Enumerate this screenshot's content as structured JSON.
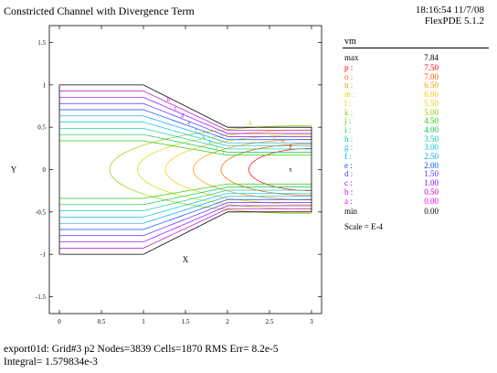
{
  "header": {
    "title": "Constricted Channel with Divergence Term",
    "timestamp": "18:16:54 11/7/08",
    "version": "FlexPDE 5.1.2"
  },
  "footer": {
    "line1": "export01d:  Grid#3  p2  Nodes=3839 Cells=1870 RMS Err= 8.2e-5",
    "line2": "Integral=  1.579834e-3"
  },
  "chart_data": {
    "type": "contour",
    "title": "Constricted Channel with Divergence Term",
    "xlabel": "X",
    "ylabel": "Y",
    "xlim": [
      -0.12,
      3.12
    ],
    "ylim": [
      -1.7,
      1.7
    ],
    "xticks": [
      "0",
      "0.5",
      "1",
      "1.5",
      "2",
      "2.5",
      "3"
    ],
    "yticks": [
      "1.5",
      "1",
      "0.5",
      "0",
      "-0.5",
      "-1",
      "-1.5"
    ],
    "geometry": {
      "wide_channel_half_height": 1.0,
      "narrow_channel_half_height": 0.5,
      "taper_start_x": 1.0,
      "taper_end_x": 2.0,
      "x_range": [
        0,
        3
      ]
    },
    "variable": "vm",
    "max": "7.84",
    "min": "0.00",
    "scale": "Scale = E-4",
    "levels": [
      {
        "key": "p",
        "value": "7.50",
        "color": "#ff0000"
      },
      {
        "key": "o",
        "value": "7.00",
        "color": "#ff5a00"
      },
      {
        "key": "n",
        "value": "6.50",
        "color": "#ff9600"
      },
      {
        "key": "m",
        "value": "6.00",
        "color": "#ffc800"
      },
      {
        "key": "l",
        "value": "5.50",
        "color": "#d2dc00"
      },
      {
        "key": "k",
        "value": "5.00",
        "color": "#8cd200"
      },
      {
        "key": "j",
        "value": "4.50",
        "color": "#32c800"
      },
      {
        "key": "i",
        "value": "4.00",
        "color": "#00c850"
      },
      {
        "key": "h",
        "value": "3.50",
        "color": "#00c8a0"
      },
      {
        "key": "g",
        "value": "3.00",
        "color": "#00c8dc"
      },
      {
        "key": "f",
        "value": "2.50",
        "color": "#00a0ff"
      },
      {
        "key": "e",
        "value": "2.00",
        "color": "#0050ff"
      },
      {
        "key": "d",
        "value": "1.50",
        "color": "#5a28ff"
      },
      {
        "key": "c",
        "value": "1.00",
        "color": "#9600ff"
      },
      {
        "key": "b",
        "value": "0.50",
        "color": "#c800c8"
      },
      {
        "key": "a",
        "value": "0.00",
        "color": "#ff00ff"
      }
    ],
    "marker": "x",
    "marker_location": [
      2.75,
      0
    ]
  }
}
